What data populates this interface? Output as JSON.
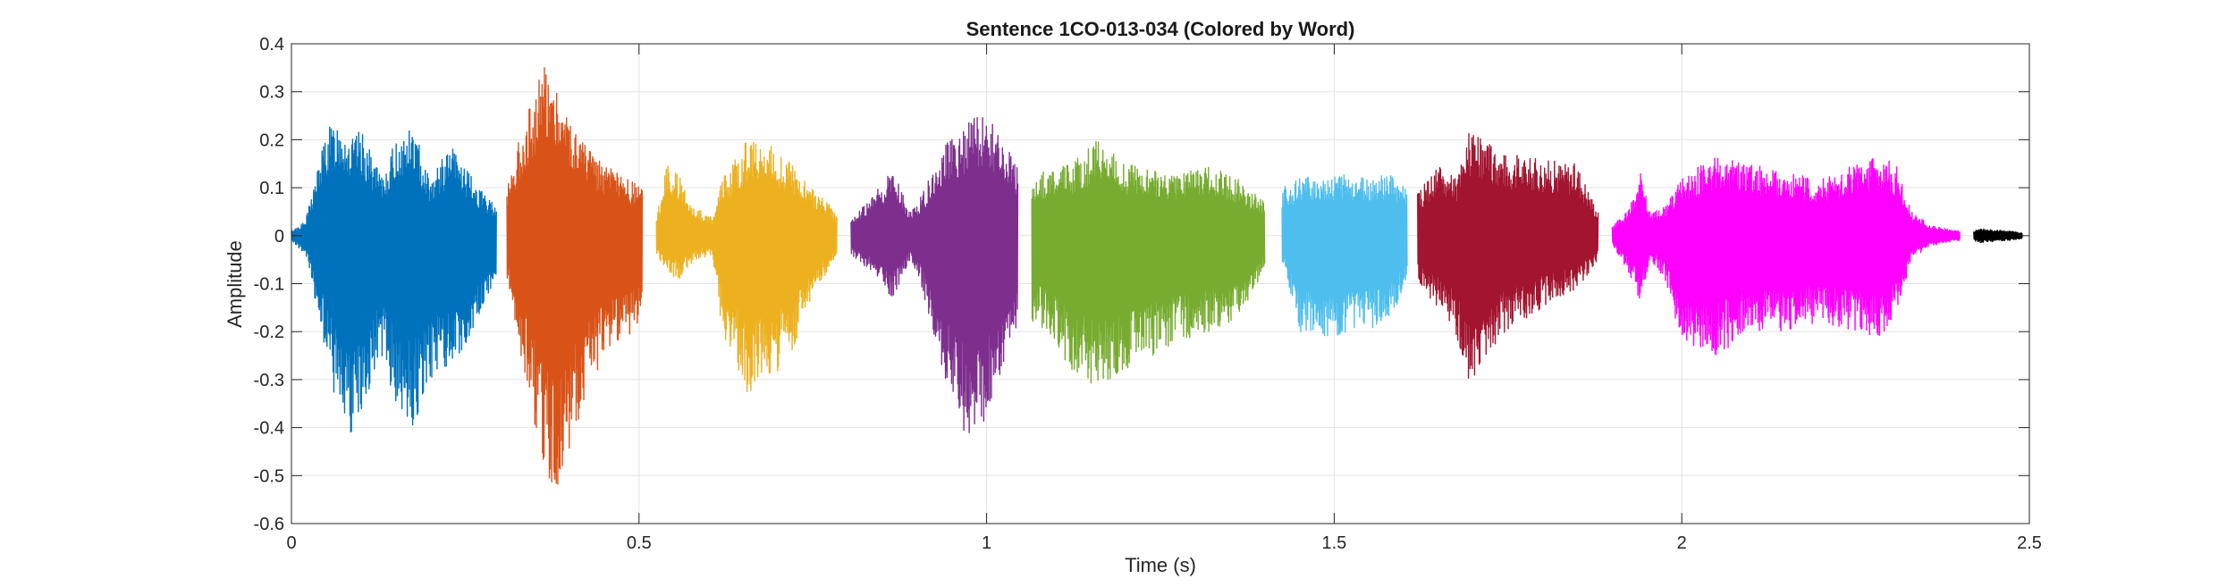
{
  "chart_data": {
    "type": "line",
    "title": "Sentence 1CO-013-034 (Colored by Word)",
    "xlabel": "Time (s)",
    "ylabel": "Amplitude",
    "xlim": [
      0,
      2.5
    ],
    "ylim": [
      -0.6,
      0.4
    ],
    "xticks": [
      0,
      0.5,
      1,
      1.5,
      2,
      2.5
    ],
    "xtick_labels": [
      "0",
      "0.5",
      "1",
      "1.5",
      "2",
      "2.5"
    ],
    "yticks": [
      -0.6,
      -0.5,
      -0.4,
      -0.3,
      -0.2,
      -0.1,
      0,
      0.1,
      0.2,
      0.3,
      0.4
    ],
    "ytick_labels": [
      "-0.6",
      "-0.5",
      "-0.4",
      "-0.3",
      "-0.2",
      "-0.1",
      "0",
      "0.1",
      "0.2",
      "0.3",
      "0.4"
    ],
    "grid": true,
    "legend": false,
    "series": [
      {
        "color": "#0072BD",
        "t_start": 0.0,
        "t_end": 0.295,
        "envelope": [
          [
            0.0,
            0.01,
            -0.01
          ],
          [
            0.02,
            0.03,
            -0.04
          ],
          [
            0.05,
            0.22,
            -0.25
          ],
          [
            0.07,
            0.25,
            -0.4
          ],
          [
            0.085,
            0.2,
            -0.45
          ],
          [
            0.1,
            0.22,
            -0.38
          ],
          [
            0.13,
            0.12,
            -0.25
          ],
          [
            0.15,
            0.2,
            -0.35
          ],
          [
            0.175,
            0.23,
            -0.4
          ],
          [
            0.2,
            0.12,
            -0.3
          ],
          [
            0.23,
            0.19,
            -0.28
          ],
          [
            0.26,
            0.12,
            -0.2
          ],
          [
            0.28,
            0.08,
            -0.14
          ],
          [
            0.295,
            0.07,
            -0.1
          ]
        ]
      },
      {
        "color": "#D95319",
        "t_start": 0.31,
        "t_end": 0.505,
        "envelope": [
          [
            0.31,
            0.1,
            -0.1
          ],
          [
            0.33,
            0.22,
            -0.25
          ],
          [
            0.35,
            0.3,
            -0.4
          ],
          [
            0.365,
            0.37,
            -0.5
          ],
          [
            0.38,
            0.32,
            -0.54
          ],
          [
            0.4,
            0.25,
            -0.45
          ],
          [
            0.42,
            0.2,
            -0.35
          ],
          [
            0.45,
            0.15,
            -0.25
          ],
          [
            0.48,
            0.12,
            -0.22
          ],
          [
            0.505,
            0.1,
            -0.18
          ]
        ]
      },
      {
        "color": "#EDB120",
        "t_start": 0.525,
        "t_end": 0.785,
        "envelope": [
          [
            0.525,
            0.04,
            -0.04
          ],
          [
            0.54,
            0.15,
            -0.08
          ],
          [
            0.56,
            0.12,
            -0.09
          ],
          [
            0.58,
            0.06,
            -0.05
          ],
          [
            0.605,
            0.04,
            -0.04
          ],
          [
            0.62,
            0.12,
            -0.2
          ],
          [
            0.655,
            0.2,
            -0.33
          ],
          [
            0.69,
            0.19,
            -0.3
          ],
          [
            0.72,
            0.15,
            -0.25
          ],
          [
            0.75,
            0.1,
            -0.12
          ],
          [
            0.77,
            0.08,
            -0.08
          ],
          [
            0.785,
            0.04,
            -0.04
          ]
        ]
      },
      {
        "color": "#7E2F8E",
        "t_start": 0.805,
        "t_end": 1.045,
        "envelope": [
          [
            0.805,
            0.04,
            -0.04
          ],
          [
            0.83,
            0.07,
            -0.07
          ],
          [
            0.865,
            0.14,
            -0.13
          ],
          [
            0.89,
            0.05,
            -0.05
          ],
          [
            0.905,
            0.08,
            -0.1
          ],
          [
            0.94,
            0.19,
            -0.3
          ],
          [
            0.975,
            0.24,
            -0.44
          ],
          [
            1.0,
            0.26,
            -0.38
          ],
          [
            1.02,
            0.2,
            -0.3
          ],
          [
            1.045,
            0.15,
            -0.2
          ]
        ]
      },
      {
        "color": "#77AC30",
        "t_start": 1.065,
        "t_end": 1.4,
        "envelope": [
          [
            1.065,
            0.12,
            -0.18
          ],
          [
            1.09,
            0.14,
            -0.2
          ],
          [
            1.12,
            0.15,
            -0.28
          ],
          [
            1.16,
            0.2,
            -0.32
          ],
          [
            1.2,
            0.15,
            -0.28
          ],
          [
            1.24,
            0.14,
            -0.25
          ],
          [
            1.28,
            0.13,
            -0.22
          ],
          [
            1.32,
            0.15,
            -0.2
          ],
          [
            1.36,
            0.12,
            -0.18
          ],
          [
            1.4,
            0.07,
            -0.07
          ]
        ]
      },
      {
        "color": "#4DBEEE",
        "t_start": 1.425,
        "t_end": 1.605,
        "envelope": [
          [
            1.425,
            0.1,
            -0.05
          ],
          [
            1.45,
            0.12,
            -0.2
          ],
          [
            1.5,
            0.13,
            -0.22
          ],
          [
            1.55,
            0.12,
            -0.2
          ],
          [
            1.58,
            0.13,
            -0.18
          ],
          [
            1.605,
            0.1,
            -0.1
          ]
        ]
      },
      {
        "color": "#A2142F",
        "t_start": 1.62,
        "t_end": 1.88,
        "envelope": [
          [
            1.62,
            0.09,
            -0.1
          ],
          [
            1.65,
            0.15,
            -0.15
          ],
          [
            1.675,
            0.12,
            -0.21
          ],
          [
            1.695,
            0.22,
            -0.31
          ],
          [
            1.72,
            0.2,
            -0.25
          ],
          [
            1.75,
            0.17,
            -0.2
          ],
          [
            1.8,
            0.16,
            -0.15
          ],
          [
            1.85,
            0.15,
            -0.11
          ],
          [
            1.88,
            0.05,
            -0.05
          ]
        ]
      },
      {
        "color": "#FF00FF",
        "t_start": 1.9,
        "t_end": 2.4,
        "envelope": [
          [
            1.9,
            0.02,
            -0.02
          ],
          [
            1.925,
            0.06,
            -0.08
          ],
          [
            1.94,
            0.14,
            -0.14
          ],
          [
            1.955,
            0.05,
            -0.05
          ],
          [
            1.975,
            0.06,
            -0.09
          ],
          [
            2.0,
            0.12,
            -0.22
          ],
          [
            2.05,
            0.17,
            -0.25
          ],
          [
            2.1,
            0.15,
            -0.2
          ],
          [
            2.15,
            0.13,
            -0.2
          ],
          [
            2.2,
            0.12,
            -0.18
          ],
          [
            2.25,
            0.15,
            -0.2
          ],
          [
            2.285,
            0.17,
            -0.22
          ],
          [
            2.31,
            0.15,
            -0.16
          ],
          [
            2.33,
            0.05,
            -0.05
          ],
          [
            2.36,
            0.02,
            -0.02
          ],
          [
            2.4,
            0.01,
            -0.01
          ]
        ]
      },
      {
        "color": "#000000",
        "t_start": 2.42,
        "t_end": 2.49,
        "envelope": [
          [
            2.42,
            0.01,
            -0.01
          ],
          [
            2.43,
            0.015,
            -0.015
          ],
          [
            2.45,
            0.012,
            -0.012
          ],
          [
            2.47,
            0.01,
            -0.01
          ],
          [
            2.49,
            0.006,
            -0.006
          ]
        ]
      }
    ]
  }
}
